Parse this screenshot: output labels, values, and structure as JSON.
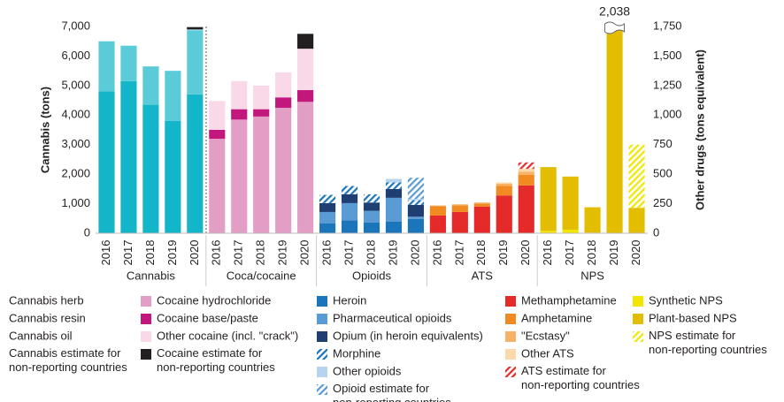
{
  "chart_data": {
    "type": "stacked_bar",
    "y_label": "Cannabis (tons)",
    "y2_label": "Other drugs (tons equivalent)",
    "groups": [
      "Cannabis",
      "Coca/cocaine",
      "Opioids",
      "ATS",
      "NPS"
    ],
    "categories": [
      "2016",
      "2017",
      "2018",
      "2019",
      "2020",
      "2016",
      "2017",
      "2018",
      "2019",
      "2020",
      "2016",
      "2017",
      "2018",
      "2019",
      "2020",
      "2016",
      "2017",
      "2018",
      "2019",
      "2020",
      "2016",
      "2017",
      "2018",
      "2019",
      "2020"
    ],
    "ylim": [
      0,
      7000
    ],
    "yticks": [
      0,
      {
        "value": 1000,
        "label": "1,000"
      },
      {
        "value": 2000,
        "label": "2,000"
      },
      {
        "value": 3000,
        "label": "3,000"
      },
      {
        "value": 4000,
        "label": "4,000"
      },
      {
        "value": 5000,
        "label": "5,000"
      },
      {
        "value": 6000,
        "label": "6,000"
      },
      {
        "value": 7000,
        "label": "7,000"
      }
    ],
    "y2lim": [
      0,
      1750
    ],
    "y2ticks": [
      0,
      250,
      500,
      750,
      {
        "value": 1000,
        "label": "1,000"
      },
      {
        "value": 1250,
        "label": "1,250"
      },
      {
        "value": 1500,
        "label": "1,500"
      },
      {
        "value": 1750,
        "label": "1,750"
      }
    ],
    "series": [
      {
        "name": "Cannabis herb",
        "color": "#13b5c9",
        "axis": "y",
        "values": [
          4800,
          5150,
          4350,
          3800,
          4700,
          null,
          null,
          null,
          null,
          null,
          null,
          null,
          null,
          null,
          null,
          null,
          null,
          null,
          null,
          null,
          null,
          null,
          null,
          null,
          null
        ]
      },
      {
        "name": "Cannabis resin",
        "color": "#5ccbd8",
        "axis": "y",
        "values": [
          1700,
          1200,
          1300,
          1700,
          2170,
          null,
          null,
          null,
          null,
          null,
          null,
          null,
          null,
          null,
          null,
          null,
          null,
          null,
          null,
          null,
          null,
          null,
          null,
          null,
          null
        ]
      },
      {
        "name": "Cannabis oil",
        "color": "#9fe0e8",
        "axis": "y",
        "values": [
          5,
          5,
          5,
          5,
          30,
          null,
          null,
          null,
          null,
          null,
          null,
          null,
          null,
          null,
          null,
          null,
          null,
          null,
          null,
          null,
          null,
          null,
          null,
          null,
          null
        ]
      },
      {
        "name": "Cannabis estimate for non-reporting countries",
        "color": "#231f20",
        "axis": "y",
        "values": [
          null,
          null,
          null,
          null,
          80,
          null,
          null,
          null,
          null,
          null,
          null,
          null,
          null,
          null,
          null,
          null,
          null,
          null,
          null,
          null,
          null,
          null,
          null,
          null,
          null
        ]
      },
      {
        "name": "Cocaine hydrochloride",
        "color": "#e39ec6",
        "axis": "y2",
        "values": [
          null,
          null,
          null,
          null,
          null,
          800,
          962,
          988,
          1062,
          1112,
          null,
          null,
          null,
          null,
          null,
          null,
          null,
          null,
          null,
          null,
          null,
          null,
          null,
          null,
          null
        ]
      },
      {
        "name": "Cocaine base/paste",
        "color": "#c2187e",
        "axis": "y2",
        "values": [
          null,
          null,
          null,
          null,
          null,
          75,
          88,
          62,
          88,
          100,
          null,
          null,
          null,
          null,
          null,
          null,
          null,
          null,
          null,
          null,
          null,
          null,
          null,
          null,
          null
        ]
      },
      {
        "name": "Other cocaine (incl. \"crack\")",
        "color": "#f9d9e8",
        "axis": "y2",
        "values": [
          null,
          null,
          null,
          null,
          null,
          245,
          238,
          200,
          212,
          350,
          null,
          null,
          null,
          null,
          null,
          null,
          null,
          null,
          null,
          null,
          null,
          null,
          null,
          null,
          null
        ]
      },
      {
        "name": "Cocaine estimate for non-reporting countries",
        "color": "#231f20",
        "axis": "y2",
        "values": [
          null,
          null,
          null,
          null,
          null,
          null,
          null,
          null,
          null,
          126,
          null,
          null,
          null,
          null,
          null,
          null,
          null,
          null,
          null,
          null,
          null,
          null,
          null,
          null,
          null
        ]
      },
      {
        "name": "Heroin",
        "color": "#1b75bb",
        "axis": "y2",
        "values": [
          null,
          null,
          null,
          null,
          null,
          null,
          null,
          null,
          null,
          null,
          85,
          110,
          90,
          100,
          120,
          null,
          null,
          null,
          null,
          null,
          null,
          null,
          null,
          null,
          null
        ]
      },
      {
        "name": "Pharmaceutical opioids",
        "color": "#5b9bd5",
        "axis": "y2",
        "values": [
          null,
          null,
          null,
          null,
          null,
          null,
          null,
          null,
          null,
          null,
          95,
          145,
          100,
          200,
          20,
          null,
          null,
          null,
          null,
          null,
          null,
          null,
          null,
          null,
          null
        ]
      },
      {
        "name": "Opium (in heroin equivalents)",
        "color": "#1f3f73",
        "axis": "y2",
        "values": [
          null,
          null,
          null,
          null,
          null,
          null,
          null,
          null,
          null,
          null,
          75,
          75,
          70,
          75,
          100,
          null,
          null,
          null,
          null,
          null,
          null,
          null,
          null,
          null,
          null
        ]
      },
      {
        "name": "Morphine",
        "color": "#1b75bb",
        "axis": "y2",
        "hatch": true,
        "values": [
          null,
          null,
          null,
          null,
          null,
          null,
          null,
          null,
          null,
          null,
          70,
          70,
          70,
          55,
          40,
          null,
          null,
          null,
          null,
          null,
          null,
          null,
          null,
          null,
          null
        ]
      },
      {
        "name": "Other opioids",
        "color": "#b7d3ee",
        "axis": "y2",
        "values": [
          null,
          null,
          null,
          null,
          null,
          null,
          null,
          null,
          null,
          null,
          null,
          null,
          null,
          30,
          10,
          null,
          null,
          null,
          null,
          null,
          null,
          null,
          null,
          null,
          null
        ]
      },
      {
        "name": "Opioid estimate for non-reporting countries",
        "color": "#5b9bd5",
        "axis": "y2",
        "hatch": true,
        "values": [
          null,
          null,
          null,
          null,
          null,
          null,
          null,
          null,
          null,
          null,
          null,
          null,
          null,
          null,
          180,
          null,
          null,
          null,
          null,
          null,
          null,
          null,
          null,
          null,
          null
        ]
      },
      {
        "name": "Methamphetamine",
        "color": "#e52a2a",
        "axis": "y2",
        "values": [
          null,
          null,
          null,
          null,
          null,
          null,
          null,
          null,
          null,
          null,
          null,
          null,
          null,
          null,
          null,
          150,
          180,
          225,
          320,
          405,
          null,
          null,
          null,
          null,
          null
        ]
      },
      {
        "name": "Amphetamine",
        "color": "#f18a21",
        "axis": "y2",
        "values": [
          null,
          null,
          null,
          null,
          null,
          null,
          null,
          null,
          null,
          null,
          null,
          null,
          null,
          null,
          null,
          80,
          55,
          25,
          80,
          90,
          null,
          null,
          null,
          null,
          null
        ]
      },
      {
        "name": "\"Ecstasy\"",
        "color": "#f7b265",
        "axis": "y2",
        "values": [
          null,
          null,
          null,
          null,
          null,
          null,
          null,
          null,
          null,
          null,
          null,
          null,
          null,
          null,
          null,
          5,
          10,
          10,
          20,
          25,
          null,
          null,
          null,
          null,
          null
        ]
      },
      {
        "name": "Other ATS",
        "color": "#fcd9a8",
        "axis": "y2",
        "values": [
          null,
          null,
          null,
          null,
          null,
          null,
          null,
          null,
          null,
          null,
          null,
          null,
          null,
          null,
          null,
          null,
          null,
          null,
          10,
          25,
          null,
          null,
          null,
          null,
          null
        ]
      },
      {
        "name": "ATS estimate for non-reporting countries",
        "color": "#e52a2a",
        "axis": "y2",
        "hatch": true,
        "values": [
          null,
          null,
          null,
          null,
          null,
          null,
          null,
          null,
          null,
          null,
          null,
          null,
          null,
          null,
          null,
          null,
          null,
          null,
          null,
          55,
          null,
          null,
          null,
          null,
          null
        ]
      },
      {
        "name": "Synthetic NPS",
        "color": "#f2e600",
        "axis": "y2",
        "values": [
          null,
          null,
          null,
          null,
          null,
          null,
          null,
          null,
          null,
          null,
          null,
          null,
          null,
          null,
          null,
          null,
          null,
          null,
          null,
          null,
          20,
          30,
          5,
          null,
          null
        ]
      },
      {
        "name": "Plant-based NPS",
        "color": "#e2bd00",
        "axis": "y2",
        "values": [
          null,
          null,
          null,
          null,
          null,
          null,
          null,
          null,
          null,
          null,
          null,
          null,
          null,
          null,
          null,
          null,
          null,
          null,
          null,
          null,
          540,
          450,
          215,
          2038,
          215
        ],
        "value_labels": [
          null,
          null,
          null,
          null,
          null,
          null,
          null,
          null,
          null,
          null,
          null,
          null,
          null,
          null,
          null,
          null,
          null,
          null,
          null,
          null,
          null,
          null,
          null,
          "2,038",
          null
        ]
      },
      {
        "name": "NPS estimate for non-reporting countries",
        "color": "#f2e600",
        "axis": "y2",
        "hatch": true,
        "values": [
          null,
          null,
          null,
          null,
          null,
          null,
          null,
          null,
          null,
          null,
          null,
          null,
          null,
          null,
          null,
          null,
          null,
          null,
          null,
          null,
          null,
          null,
          null,
          null,
          535
        ]
      }
    ]
  }
}
